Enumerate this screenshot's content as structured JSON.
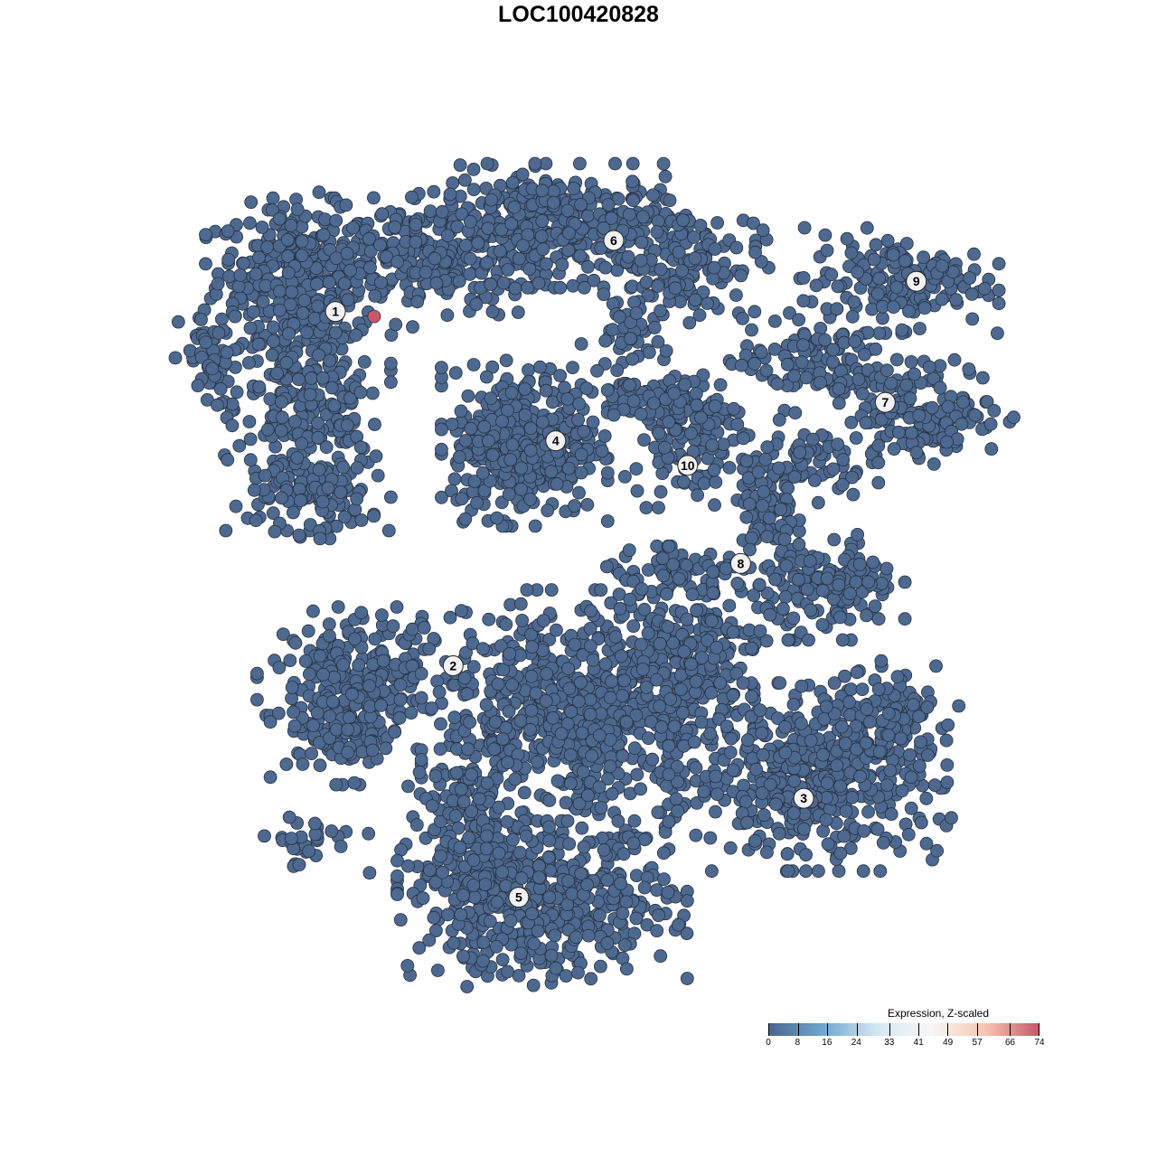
{
  "chart_data": {
    "type": "scatter",
    "title": "LOC100420828",
    "xlabel": "",
    "ylabel": "",
    "axes_visible": false,
    "grid": false,
    "xlim": [
      -50,
      50
    ],
    "ylim": [
      -50,
      50
    ],
    "point_color_default": "#4d6990",
    "point_stroke": "#27303f",
    "cluster_labels": [
      {
        "label": "1",
        "x": -31.6,
        "y": 32.3
      },
      {
        "label": "2",
        "x": -17.6,
        "y": -11.0
      },
      {
        "label": "3",
        "x": 24.1,
        "y": -27.2
      },
      {
        "label": "4",
        "x": -5.4,
        "y": 16.5
      },
      {
        "label": "5",
        "x": -9.8,
        "y": -39.3
      },
      {
        "label": "6",
        "x": 1.5,
        "y": 41.0
      },
      {
        "label": "7",
        "x": 33.8,
        "y": 21.2
      },
      {
        "label": "8",
        "x": 16.6,
        "y": 1.5
      },
      {
        "label": "9",
        "x": 37.5,
        "y": 36.0
      },
      {
        "label": "10",
        "x": 10.3,
        "y": 13.5
      }
    ],
    "cell_density_components": [
      {
        "cluster": "1",
        "x": -36.0,
        "y": 37.2,
        "sx": 4.8,
        "sy": 3.9,
        "n": 300
      },
      {
        "cluster": "1",
        "x": -34.9,
        "y": 20.7,
        "sx": 4.3,
        "sy": 6.6,
        "n": 300
      },
      {
        "cluster": "1",
        "x": -21.0,
        "y": 39.4,
        "sx": 7.5,
        "sy": 3.9,
        "n": 250
      },
      {
        "cluster": "1",
        "x": -45.7,
        "y": 26.2,
        "sx": 2.2,
        "sy": 3.3,
        "n": 60
      },
      {
        "cluster": "1",
        "x": -33.9,
        "y": 9.6,
        "sx": 3.2,
        "sy": 2.2,
        "n": 80
      },
      {
        "cluster": "6",
        "x": -4.8,
        "y": 42.8,
        "sx": 7.5,
        "sy": 3.3,
        "n": 350
      },
      {
        "cluster": "6",
        "x": 10.2,
        "y": 38.3,
        "sx": 4.3,
        "sy": 3.3,
        "n": 120
      },
      {
        "cluster": "6",
        "x": 2.7,
        "y": 28.4,
        "sx": 2.2,
        "sy": 3.3,
        "n": 50
      },
      {
        "cluster": "4",
        "x": -9.1,
        "y": 16.2,
        "sx": 4.3,
        "sy": 4.4,
        "n": 400
      },
      {
        "cluster": "10",
        "x": 10.2,
        "y": 17.3,
        "sx": 3.2,
        "sy": 3.9,
        "n": 120
      },
      {
        "cluster": "10",
        "x": 5.9,
        "y": 21.2,
        "sx": 4.3,
        "sy": 1.3,
        "n": 60
      },
      {
        "cluster": "9",
        "x": 34.9,
        "y": 36.1,
        "sx": 5.4,
        "sy": 2.8,
        "n": 150
      },
      {
        "cluster": "7",
        "x": 25.3,
        "y": 26.2,
        "sx": 4.3,
        "sy": 2.8,
        "n": 120
      },
      {
        "cluster": "7",
        "x": 39.2,
        "y": 20.1,
        "sx": 4.3,
        "sy": 2.8,
        "n": 150
      },
      {
        "cluster": "7",
        "x": 23.1,
        "y": 14.0,
        "sx": 4.3,
        "sy": 2.2,
        "n": 80
      },
      {
        "cluster": "8",
        "x": 19.9,
        "y": 7.4,
        "sx": 1.6,
        "sy": 3.3,
        "n": 80
      },
      {
        "cluster": "8",
        "x": 27.4,
        "y": -1.4,
        "sx": 3.8,
        "sy": 2.8,
        "n": 150
      },
      {
        "cluster": "8",
        "x": 10.2,
        "y": -0.3,
        "sx": 5.4,
        "sy": 1.7,
        "n": 80
      },
      {
        "cluster": "2",
        "x": -28.5,
        "y": -11.4,
        "sx": 5.4,
        "sy": 3.3,
        "n": 200
      },
      {
        "cluster": "2",
        "x": -30.6,
        "y": -19.1,
        "sx": 3.8,
        "sy": 2.8,
        "n": 120
      },
      {
        "cluster": "2",
        "x": -34.9,
        "y": -32.4,
        "sx": 3.2,
        "sy": 1.7,
        "n": 30
      },
      {
        "cluster": "main",
        "x": -1.6,
        "y": -16.9,
        "sx": 8.6,
        "sy": 6.6,
        "n": 700
      },
      {
        "cluster": "main",
        "x": 10.2,
        "y": -9.2,
        "sx": 4.3,
        "sy": 3.3,
        "n": 150
      },
      {
        "cluster": "3",
        "x": 25.3,
        "y": -24.6,
        "sx": 7.5,
        "sy": 5.0,
        "n": 450
      },
      {
        "cluster": "3",
        "x": 33.9,
        "y": -18.0,
        "sx": 3.2,
        "sy": 3.3,
        "n": 120
      },
      {
        "cluster": "5",
        "x": -7.0,
        "y": -40.1,
        "sx": 7.5,
        "sy": 4.4,
        "n": 500
      },
      {
        "cluster": "5",
        "x": -15.6,
        "y": -31.3,
        "sx": 3.2,
        "sy": 4.4,
        "n": 150
      }
    ],
    "highlighted_points": [
      {
        "x": -27.0,
        "y": 31.7,
        "value": 74,
        "color": "#c9596a"
      }
    ],
    "colorbar": {
      "title": "Expression, Z-scaled",
      "ticks": [
        "0",
        "8",
        "16",
        "24",
        "33",
        "41",
        "49",
        "57",
        "66",
        "74"
      ],
      "min": 0,
      "max": 74,
      "colors": [
        "#4a6590",
        "#6fa7d0",
        "#d6e7f1",
        "#f7f7f7",
        "#f7c6b0",
        "#c9596a"
      ],
      "placement": "bottom-right"
    }
  }
}
